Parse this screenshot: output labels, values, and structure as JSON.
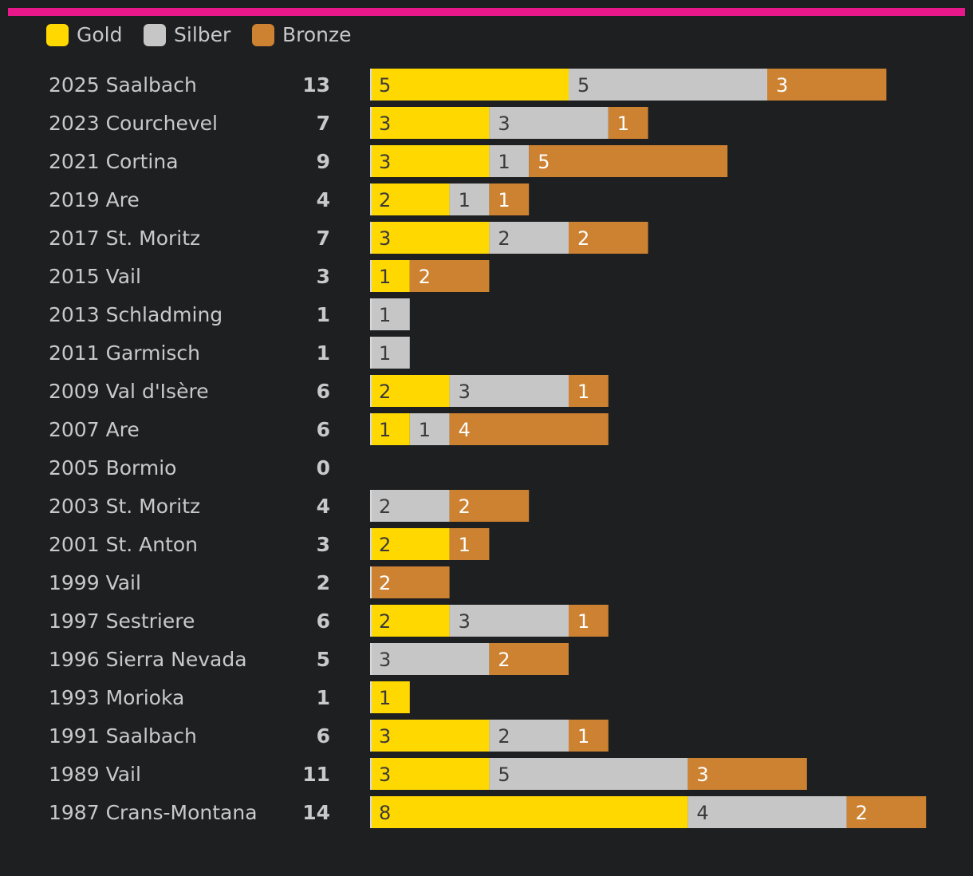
{
  "colors": {
    "accent": "#e8178a",
    "background": "#1e1f21",
    "gold": "#ffd800",
    "silver": "#c6c6c6",
    "bronze": "#cd8232",
    "text": "#c9c9c9"
  },
  "legend": [
    {
      "key": "gold",
      "label": "Gold"
    },
    {
      "key": "silver",
      "label": "Silber"
    },
    {
      "key": "bronze",
      "label": "Bronze"
    }
  ],
  "chart_data": {
    "type": "bar",
    "orientation": "horizontal",
    "stacked": true,
    "title": "",
    "xlabel": "",
    "ylabel": "",
    "grid": false,
    "legend_position": "top-left",
    "xlim": [
      0,
      14
    ],
    "categories": [
      "2025 Saalbach",
      "2023 Courchevel",
      "2021 Cortina",
      "2019 Are",
      "2017 St. Moritz",
      "2015 Vail",
      "2013 Schladming",
      "2011 Garmisch",
      "2009 Val d'Isère",
      "2007 Are",
      "2005 Bormio",
      "2003 St. Moritz",
      "2001 St. Anton",
      "1999 Vail",
      "1997 Sestriere",
      "1996 Sierra Nevada",
      "1993 Morioka",
      "1991 Saalbach",
      "1989 Vail",
      "1987 Crans-Montana"
    ],
    "totals": [
      "13",
      "7",
      "9",
      "4",
      "7",
      "3",
      "1",
      "1",
      "6",
      "6",
      "0",
      "4",
      "3",
      "2",
      "6",
      "5",
      "1",
      "6",
      "11",
      "14"
    ],
    "series": [
      {
        "name": "Gold",
        "key": "gold",
        "values": [
          5,
          3,
          3,
          2,
          3,
          1,
          0,
          0,
          2,
          1,
          0,
          0,
          2,
          0,
          2,
          0,
          1,
          3,
          3,
          8
        ]
      },
      {
        "name": "Silber",
        "key": "silver",
        "values": [
          5,
          3,
          1,
          1,
          2,
          0,
          1,
          1,
          3,
          1,
          0,
          2,
          0,
          0,
          3,
          3,
          0,
          2,
          5,
          4
        ]
      },
      {
        "name": "Bronze",
        "key": "bronze",
        "values": [
          3,
          1,
          5,
          1,
          2,
          2,
          0,
          0,
          1,
          4,
          0,
          2,
          1,
          2,
          1,
          2,
          0,
          1,
          3,
          2
        ]
      }
    ]
  }
}
